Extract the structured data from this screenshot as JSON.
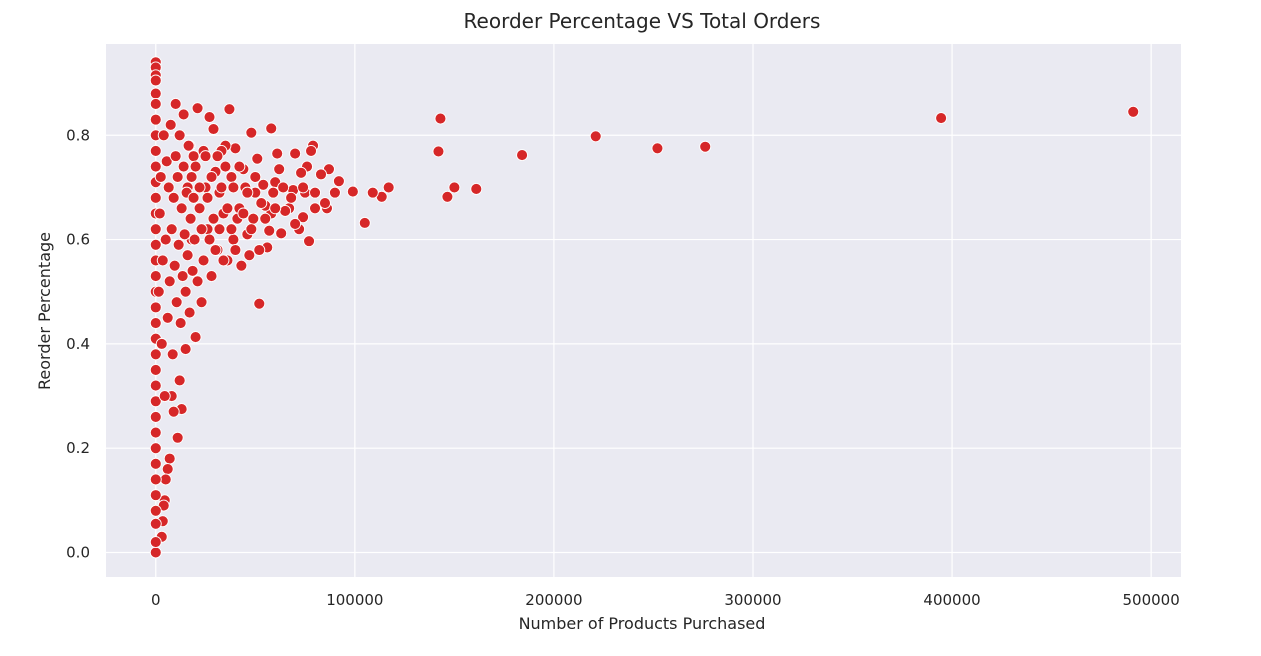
{
  "chart_data": {
    "type": "scatter",
    "title": "Reorder Percentage VS Total Orders",
    "xlabel": "Number of Products Purchased",
    "ylabel": "Reorder Percentage",
    "xlim": [
      -25000,
      515000
    ],
    "ylim": [
      -0.047,
      0.975
    ],
    "xticks": [
      0,
      100000,
      200000,
      300000,
      400000,
      500000
    ],
    "yticks": [
      0.0,
      0.2,
      0.4,
      0.6,
      0.8
    ],
    "xtick_labels": [
      "0",
      "100000",
      "200000",
      "300000",
      "400000",
      "500000"
    ],
    "ytick_labels": [
      "0.0",
      "0.2",
      "0.4",
      "0.6",
      "0.8"
    ],
    "grid": true,
    "legend": "none",
    "point_color": "#d62728",
    "background_color": "#eaeaf2",
    "points": [
      [
        491000,
        0.845
      ],
      [
        394500,
        0.833
      ],
      [
        276000,
        0.778
      ],
      [
        252000,
        0.775
      ],
      [
        221000,
        0.798
      ],
      [
        184000,
        0.762
      ],
      [
        161000,
        0.697
      ],
      [
        150000,
        0.7
      ],
      [
        146500,
        0.682
      ],
      [
        143000,
        0.832
      ],
      [
        142000,
        0.769
      ],
      [
        117000,
        0.7
      ],
      [
        113500,
        0.682
      ],
      [
        109000,
        0.69
      ],
      [
        105000,
        0.632
      ],
      [
        99000,
        0.692
      ],
      [
        92000,
        0.712
      ],
      [
        90000,
        0.69
      ],
      [
        87000,
        0.735
      ],
      [
        86000,
        0.66
      ],
      [
        85000,
        0.67
      ],
      [
        83000,
        0.725
      ],
      [
        80000,
        0.66
      ],
      [
        79000,
        0.78
      ],
      [
        78000,
        0.77
      ],
      [
        77000,
        0.597
      ],
      [
        76000,
        0.74
      ],
      [
        75000,
        0.69
      ],
      [
        74000,
        0.643
      ],
      [
        73000,
        0.728
      ],
      [
        72000,
        0.62
      ],
      [
        70000,
        0.765
      ],
      [
        70000,
        0.63
      ],
      [
        69000,
        0.695
      ],
      [
        67000,
        0.66
      ],
      [
        65000,
        0.655
      ],
      [
        63000,
        0.612
      ],
      [
        62000,
        0.735
      ],
      [
        61000,
        0.765
      ],
      [
        60000,
        0.71
      ],
      [
        59000,
        0.69
      ],
      [
        58000,
        0.65
      ],
      [
        58000,
        0.813
      ],
      [
        57000,
        0.617
      ],
      [
        56000,
        0.585
      ],
      [
        55000,
        0.665
      ],
      [
        54000,
        0.705
      ],
      [
        53000,
        0.67
      ],
      [
        52000,
        0.58
      ],
      [
        52000,
        0.477
      ],
      [
        51000,
        0.755
      ],
      [
        50000,
        0.69
      ],
      [
        49000,
        0.64
      ],
      [
        48000,
        0.805
      ],
      [
        47000,
        0.57
      ],
      [
        46000,
        0.61
      ],
      [
        45000,
        0.7
      ],
      [
        44000,
        0.735
      ],
      [
        43000,
        0.55
      ],
      [
        42000,
        0.66
      ],
      [
        41000,
        0.64
      ],
      [
        40000,
        0.775
      ],
      [
        39000,
        0.6
      ],
      [
        38000,
        0.72
      ],
      [
        37000,
        0.85
      ],
      [
        36000,
        0.56
      ],
      [
        35000,
        0.78
      ],
      [
        34000,
        0.65
      ],
      [
        33000,
        0.77
      ],
      [
        32000,
        0.69
      ],
      [
        31000,
        0.58
      ],
      [
        30000,
        0.73
      ],
      [
        29000,
        0.812
      ],
      [
        28000,
        0.53
      ],
      [
        27000,
        0.835
      ],
      [
        26000,
        0.62
      ],
      [
        25000,
        0.7
      ],
      [
        24000,
        0.77
      ],
      [
        23000,
        0.48
      ],
      [
        22000,
        0.66
      ],
      [
        21000,
        0.852
      ],
      [
        20000,
        0.413
      ],
      [
        19000,
        0.76
      ],
      [
        18000,
        0.6
      ],
      [
        17000,
        0.78
      ],
      [
        16000,
        0.7
      ],
      [
        15000,
        0.39
      ],
      [
        14000,
        0.84
      ],
      [
        13000,
        0.275
      ],
      [
        12000,
        0.33
      ],
      [
        11000,
        0.22
      ],
      [
        10000,
        0.86
      ],
      [
        9000,
        0.27
      ],
      [
        8000,
        0.3
      ],
      [
        7000,
        0.18
      ],
      [
        6000,
        0.16
      ],
      [
        5000,
        0.14
      ],
      [
        4500,
        0.1
      ],
      [
        4000,
        0.09
      ],
      [
        3500,
        0.06
      ],
      [
        3000,
        0.03
      ],
      [
        0,
        0.94
      ],
      [
        0,
        0.93
      ],
      [
        0,
        0.915
      ],
      [
        0,
        0.88
      ],
      [
        0,
        0.0
      ],
      [
        0,
        0.02
      ],
      [
        0,
        0.055
      ],
      [
        0,
        0.08
      ],
      [
        0,
        0.11
      ],
      [
        0,
        0.14
      ],
      [
        0,
        0.17
      ],
      [
        0,
        0.2
      ],
      [
        0,
        0.23
      ],
      [
        0,
        0.26
      ],
      [
        0,
        0.29
      ],
      [
        0,
        0.32
      ],
      [
        0,
        0.35
      ],
      [
        0,
        0.38
      ],
      [
        0,
        0.41
      ],
      [
        0,
        0.44
      ],
      [
        0,
        0.47
      ],
      [
        0,
        0.5
      ],
      [
        0,
        0.53
      ],
      [
        0,
        0.56
      ],
      [
        0,
        0.59
      ],
      [
        0,
        0.62
      ],
      [
        0,
        0.65
      ],
      [
        0,
        0.68
      ],
      [
        0,
        0.71
      ],
      [
        0,
        0.74
      ],
      [
        0,
        0.77
      ],
      [
        0,
        0.8
      ],
      [
        0,
        0.83
      ],
      [
        0,
        0.86
      ],
      [
        0,
        0.905
      ],
      [
        1500,
        0.5
      ],
      [
        2000,
        0.65
      ],
      [
        2500,
        0.72
      ],
      [
        3000,
        0.4
      ],
      [
        3500,
        0.56
      ],
      [
        4000,
        0.8
      ],
      [
        4500,
        0.3
      ],
      [
        5000,
        0.6
      ],
      [
        5500,
        0.75
      ],
      [
        6000,
        0.45
      ],
      [
        6500,
        0.7
      ],
      [
        7000,
        0.52
      ],
      [
        7500,
        0.82
      ],
      [
        8000,
        0.62
      ],
      [
        8500,
        0.38
      ],
      [
        9000,
        0.68
      ],
      [
        9500,
        0.55
      ],
      [
        10000,
        0.76
      ],
      [
        10500,
        0.48
      ],
      [
        11000,
        0.72
      ],
      [
        11500,
        0.59
      ],
      [
        12000,
        0.8
      ],
      [
        12500,
        0.44
      ],
      [
        13000,
        0.66
      ],
      [
        13500,
        0.53
      ],
      [
        14000,
        0.74
      ],
      [
        14500,
        0.61
      ],
      [
        15000,
        0.5
      ],
      [
        15500,
        0.69
      ],
      [
        16000,
        0.57
      ],
      [
        16500,
        0.78
      ],
      [
        17000,
        0.46
      ],
      [
        17500,
        0.64
      ],
      [
        18000,
        0.72
      ],
      [
        18500,
        0.54
      ],
      [
        19000,
        0.68
      ],
      [
        19500,
        0.6
      ],
      [
        20000,
        0.74
      ],
      [
        21000,
        0.52
      ],
      [
        22000,
        0.7
      ],
      [
        23000,
        0.62
      ],
      [
        24000,
        0.56
      ],
      [
        25000,
        0.76
      ],
      [
        26000,
        0.68
      ],
      [
        27000,
        0.6
      ],
      [
        28000,
        0.72
      ],
      [
        29000,
        0.64
      ],
      [
        30000,
        0.58
      ],
      [
        31000,
        0.76
      ],
      [
        32000,
        0.62
      ],
      [
        33000,
        0.7
      ],
      [
        34000,
        0.56
      ],
      [
        35000,
        0.74
      ],
      [
        36000,
        0.66
      ],
      [
        38000,
        0.62
      ],
      [
        39000,
        0.7
      ],
      [
        40000,
        0.58
      ],
      [
        42000,
        0.74
      ],
      [
        44000,
        0.65
      ],
      [
        46000,
        0.69
      ],
      [
        48000,
        0.62
      ],
      [
        50000,
        0.72
      ],
      [
        55000,
        0.64
      ],
      [
        60000,
        0.66
      ],
      [
        64000,
        0.7
      ],
      [
        68000,
        0.68
      ],
      [
        74000,
        0.7
      ],
      [
        80000,
        0.69
      ]
    ]
  }
}
